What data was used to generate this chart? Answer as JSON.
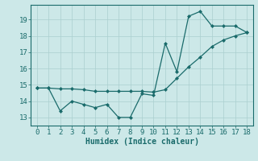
{
  "xlabel": "Humidex (Indice chaleur)",
  "x": [
    0,
    1,
    2,
    3,
    4,
    5,
    6,
    7,
    8,
    9,
    10,
    11,
    12,
    13,
    14,
    15,
    16,
    17,
    18
  ],
  "line1_y": [
    14.8,
    14.8,
    13.4,
    14.0,
    13.8,
    13.6,
    13.8,
    13.0,
    13.0,
    14.45,
    14.35,
    17.55,
    15.8,
    19.2,
    19.5,
    18.6,
    18.6,
    18.6,
    18.2
  ],
  "line2_y": [
    14.8,
    14.8,
    14.75,
    14.75,
    14.7,
    14.6,
    14.6,
    14.6,
    14.6,
    14.6,
    14.55,
    14.7,
    15.4,
    16.1,
    16.7,
    17.35,
    17.75,
    18.0,
    18.2
  ],
  "line_color": "#1a6b6b",
  "bg_color": "#cce8e8",
  "grid_color": "#aacfcf",
  "ylim": [
    12.5,
    19.9
  ],
  "xlim": [
    -0.5,
    18.5
  ],
  "yticks": [
    13,
    14,
    15,
    16,
    17,
    18,
    19
  ],
  "tick_fontsize": 6.5,
  "xlabel_fontsize": 7.0
}
